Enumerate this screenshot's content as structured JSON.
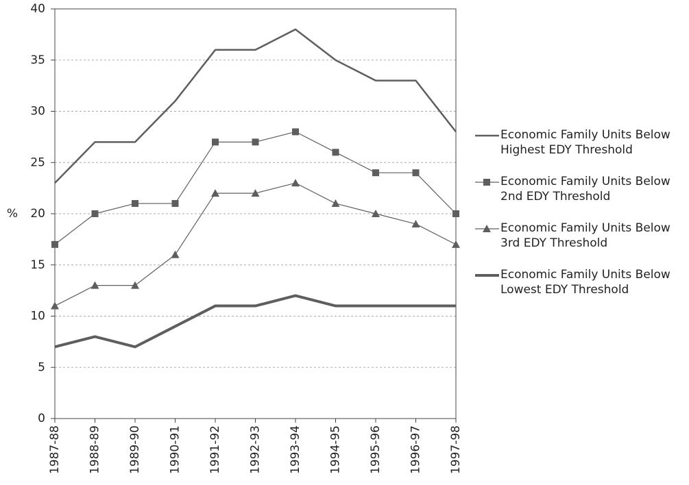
{
  "chart_data": {
    "type": "line",
    "y_label": "%",
    "categories": [
      "1987-88",
      "1988-89",
      "1989-90",
      "1990-91",
      "1991-92",
      "1992-93",
      "1993-94",
      "1994-95",
      "1995-96",
      "1996-97",
      "1997-98"
    ],
    "series": [
      {
        "name": "Economic Family Units Below Highest EDY Threshold",
        "color": "#5e5e5e",
        "line_width": 2.5,
        "marker": "none",
        "values": [
          23,
          27,
          27,
          31,
          36,
          36,
          38,
          35,
          33,
          33,
          28
        ]
      },
      {
        "name": "Economic Family Units Below 2nd EDY Threshold",
        "color": "#5e5e5e",
        "line_width": 1.2,
        "marker": "square",
        "values": [
          17,
          20,
          21,
          21,
          27,
          27,
          28,
          26,
          24,
          24,
          20
        ]
      },
      {
        "name": "Economic Family Units Below 3rd EDY Threshold",
        "color": "#5e5e5e",
        "line_width": 1.2,
        "marker": "triangle",
        "values": [
          11,
          13,
          13,
          16,
          22,
          22,
          23,
          21,
          20,
          19,
          17
        ]
      },
      {
        "name": "Economic Family Units Below Lowest EDY Threshold",
        "color": "#5e5e5e",
        "line_width": 4,
        "marker": "none",
        "values": [
          7,
          8,
          7,
          9,
          11,
          11,
          12,
          11,
          11,
          11,
          11
        ]
      }
    ],
    "ylim": [
      0,
      40
    ],
    "yticks": [
      0,
      5,
      10,
      15,
      20,
      25,
      30,
      35,
      40
    ],
    "grid": true,
    "legend": "right"
  }
}
